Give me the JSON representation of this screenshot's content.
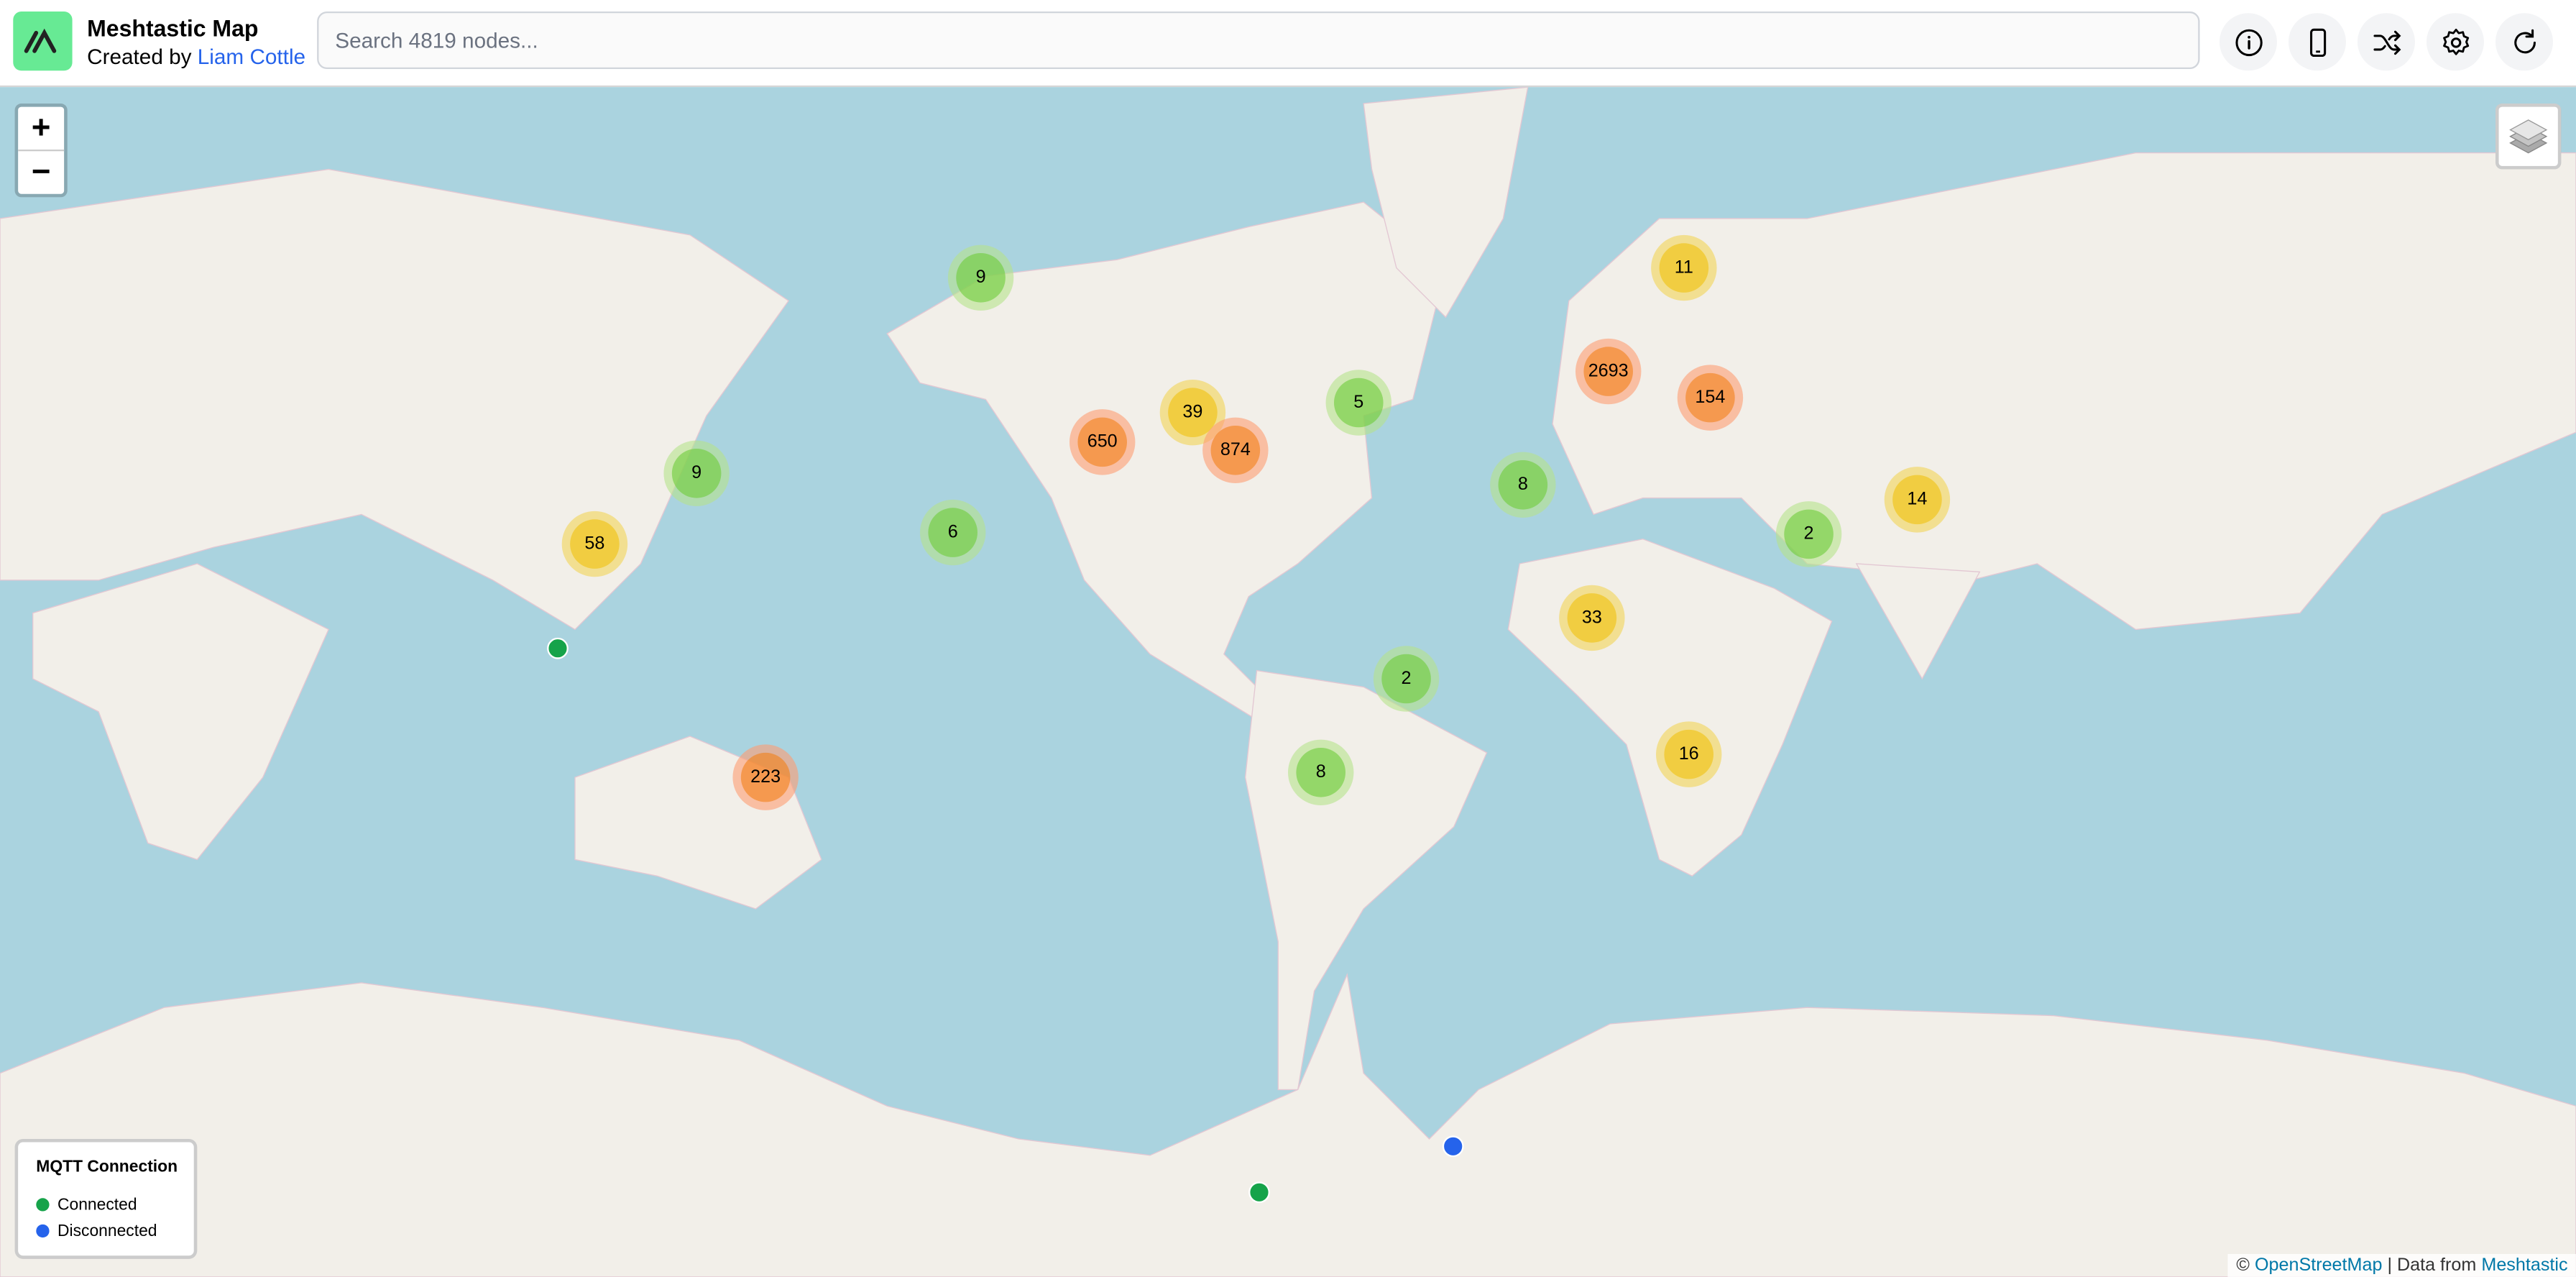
{
  "header": {
    "title": "Meshtastic Map",
    "created_by": "Created by",
    "author": "Liam Cottle",
    "search_placeholder": "Search 4819 nodes...",
    "buttons": [
      {
        "icon": "info-icon"
      },
      {
        "icon": "phone-icon"
      },
      {
        "icon": "shuffle-icon"
      },
      {
        "icon": "gear-icon"
      },
      {
        "icon": "refresh-icon"
      }
    ]
  },
  "map": {
    "zoom_in": "+",
    "zoom_out": "−",
    "colors": {
      "water": "#aad3df",
      "land": "#f2efe9",
      "connected": "#16a34a",
      "disconnected": "#2563eb"
    },
    "clusters": [
      {
        "count": "9",
        "level": "small"
      },
      {
        "count": "11",
        "level": "med"
      },
      {
        "count": "2693",
        "level": "large"
      },
      {
        "count": "154",
        "level": "large"
      },
      {
        "count": "5",
        "level": "small"
      },
      {
        "count": "39",
        "level": "med"
      },
      {
        "count": "650",
        "level": "large"
      },
      {
        "count": "874",
        "level": "large"
      },
      {
        "count": "9",
        "level": "small"
      },
      {
        "count": "8",
        "level": "small"
      },
      {
        "count": "14",
        "level": "med"
      },
      {
        "count": "2",
        "level": "small"
      },
      {
        "count": "58",
        "level": "med"
      },
      {
        "count": "6",
        "level": "small"
      },
      {
        "count": "33",
        "level": "med"
      },
      {
        "count": "2",
        "level": "small"
      },
      {
        "count": "16",
        "level": "med"
      },
      {
        "count": "223",
        "level": "large"
      },
      {
        "count": "8",
        "level": "small"
      }
    ],
    "nodes": [
      {
        "status": "connected"
      },
      {
        "status": "disconnected"
      },
      {
        "status": "connected"
      }
    ]
  },
  "legend": {
    "title": "MQTT Connection",
    "items": [
      {
        "label": "Connected",
        "color": "#16a34a"
      },
      {
        "label": "Disconnected",
        "color": "#2563eb"
      }
    ]
  },
  "attribution": {
    "copyright": "©",
    "osm": "OpenStreetMap",
    "separator": "| Data from",
    "meshtastic": "Meshtastic"
  }
}
